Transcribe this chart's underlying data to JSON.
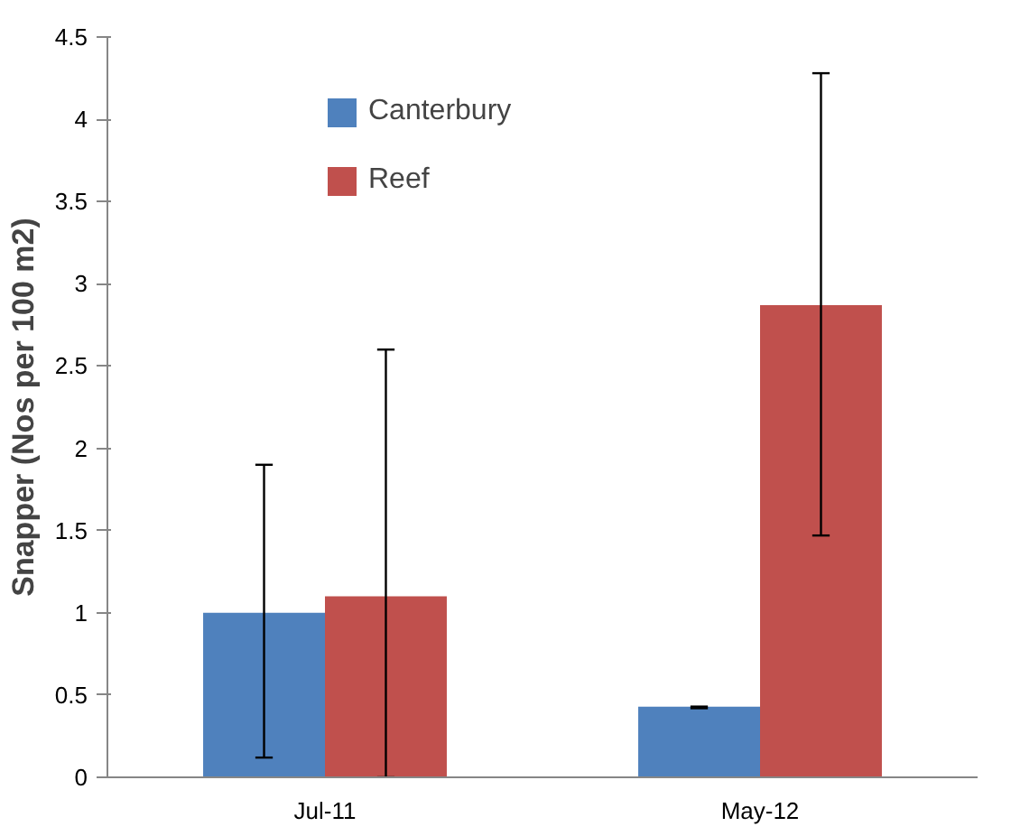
{
  "chart_data": {
    "type": "bar",
    "ylabel": "Snapper (Nos per 100 m2)",
    "categories": [
      "Jul-11",
      "May-12"
    ],
    "series": [
      {
        "name": "Canterbury",
        "color": "#4f81bd",
        "values": [
          1.0,
          0.43
        ],
        "errors": [
          [
            0.12,
            1.9
          ],
          [
            0.42,
            0.43
          ]
        ]
      },
      {
        "name": "Reef",
        "color": "#c0504d",
        "values": [
          1.1,
          2.87
        ],
        "errors": [
          [
            0.0,
            2.6
          ],
          [
            1.47,
            4.28
          ]
        ]
      }
    ],
    "ylim": [
      0,
      4.5
    ],
    "yticks": [
      0,
      0.5,
      1,
      1.5,
      2,
      2.5,
      3,
      3.5,
      4,
      4.5
    ],
    "grid": false,
    "legend": "top left"
  }
}
